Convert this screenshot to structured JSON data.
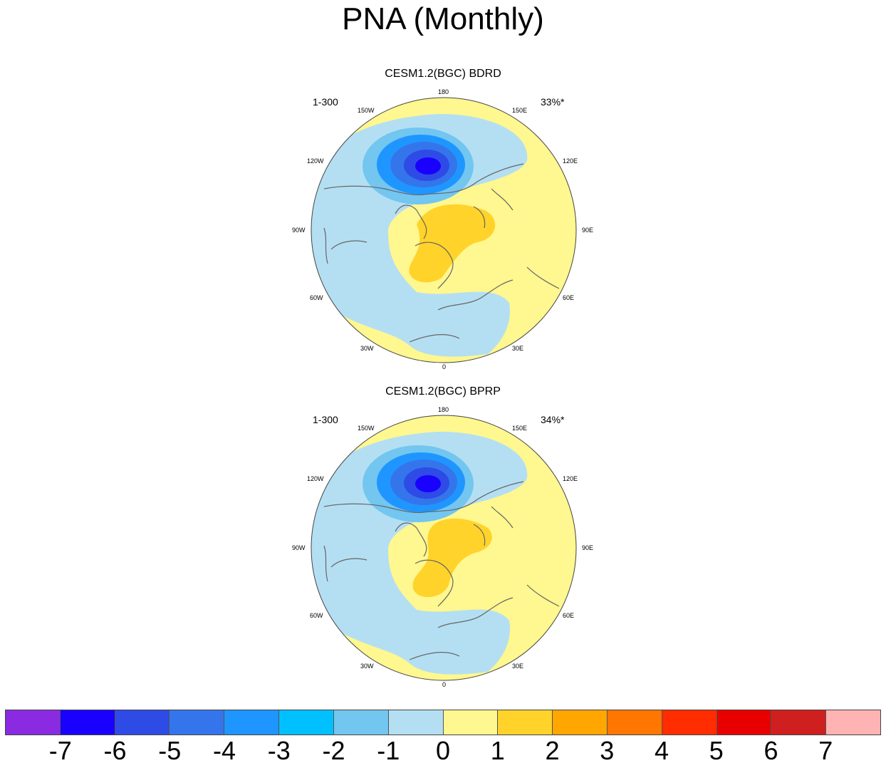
{
  "title": "PNA (Monthly)",
  "panels": [
    {
      "title": "CESM1.2(BGC) BDRD",
      "years": "1-300",
      "variance": "33%*"
    },
    {
      "title": "CESM1.2(BGC) BPRP",
      "years": "1-300",
      "variance": "34%*"
    }
  ],
  "longitude_labels": {
    "l180": "180",
    "l150e": "150E",
    "l120e": "120E",
    "l90e": "90E",
    "l60e": "60E",
    "l30e": "30E",
    "l0": "0",
    "l30w": "30W",
    "l60w": "60W",
    "l90w": "90W",
    "l120w": "120W",
    "l150w": "150W"
  },
  "colorbar": {
    "colors": [
      "#8a2be2",
      "#1a00ff",
      "#2e4be6",
      "#3575eb",
      "#1f96ff",
      "#00c0ff",
      "#72c6f0",
      "#b4dff3",
      "#fff78f",
      "#ffd32a",
      "#ffa600",
      "#ff7700",
      "#ff2d00",
      "#e80000",
      "#cf1f1f",
      "#ffb3b3"
    ],
    "ticks": [
      "-7",
      "-6",
      "-5",
      "-4",
      "-3",
      "-2",
      "-1",
      "0",
      "1",
      "2",
      "3",
      "4",
      "5",
      "6",
      "7"
    ]
  }
}
